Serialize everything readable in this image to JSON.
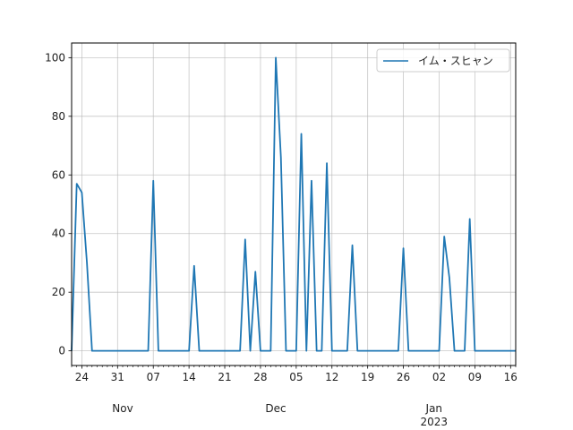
{
  "chart_data": {
    "type": "line",
    "title": "",
    "xlabel": "",
    "ylabel": "",
    "x_start": "2022-10-22",
    "x_end": "2023-01-17",
    "ylim": [
      -5,
      105
    ],
    "grid": true,
    "legend_position": "top-right",
    "series_color": "#1f77b4",
    "y_ticks": [
      0,
      20,
      40,
      60,
      80,
      100
    ],
    "x_ticks": [
      {
        "date": "2022-10-24",
        "label": "24"
      },
      {
        "date": "2022-10-31",
        "label": "31"
      },
      {
        "date": "2022-11-07",
        "label": "07"
      },
      {
        "date": "2022-11-14",
        "label": "14"
      },
      {
        "date": "2022-11-21",
        "label": "21"
      },
      {
        "date": "2022-11-28",
        "label": "28"
      },
      {
        "date": "2022-12-05",
        "label": "05"
      },
      {
        "date": "2022-12-12",
        "label": "12"
      },
      {
        "date": "2022-12-19",
        "label": "19"
      },
      {
        "date": "2022-12-26",
        "label": "26"
      },
      {
        "date": "2023-01-02",
        "label": "02"
      },
      {
        "date": "2023-01-09",
        "label": "09"
      },
      {
        "date": "2023-01-16",
        "label": "16"
      }
    ],
    "month_labels": [
      {
        "date": "2022-11-01",
        "label": "Nov"
      },
      {
        "date": "2022-12-01",
        "label": "Dec"
      },
      {
        "date": "2023-01-01",
        "label": "Jan"
      }
    ],
    "year_labels": [
      {
        "date": "2023-01-01",
        "label": "2023"
      }
    ],
    "series": [
      {
        "name": "イム・スヒャン",
        "points": [
          [
            "2022-10-22",
            0
          ],
          [
            "2022-10-23",
            57
          ],
          [
            "2022-10-24",
            54
          ],
          [
            "2022-10-25",
            30
          ],
          [
            "2022-10-26",
            0
          ],
          [
            "2022-11-06",
            0
          ],
          [
            "2022-11-07",
            58
          ],
          [
            "2022-11-08",
            0
          ],
          [
            "2022-11-14",
            0
          ],
          [
            "2022-11-15",
            29
          ],
          [
            "2022-11-16",
            0
          ],
          [
            "2022-11-24",
            0
          ],
          [
            "2022-11-25",
            38
          ],
          [
            "2022-11-26",
            0
          ],
          [
            "2022-11-27",
            27
          ],
          [
            "2022-11-28",
            0
          ],
          [
            "2022-11-30",
            0
          ],
          [
            "2022-12-01",
            100
          ],
          [
            "2022-12-02",
            66
          ],
          [
            "2022-12-03",
            0
          ],
          [
            "2022-12-05",
            0
          ],
          [
            "2022-12-06",
            74
          ],
          [
            "2022-12-07",
            0
          ],
          [
            "2022-12-08",
            58
          ],
          [
            "2022-12-09",
            0
          ],
          [
            "2022-12-10",
            0
          ],
          [
            "2022-12-11",
            64
          ],
          [
            "2022-12-12",
            0
          ],
          [
            "2022-12-15",
            0
          ],
          [
            "2022-12-16",
            36
          ],
          [
            "2022-12-17",
            0
          ],
          [
            "2022-12-25",
            0
          ],
          [
            "2022-12-26",
            35
          ],
          [
            "2022-12-27",
            0
          ],
          [
            "2023-01-02",
            0
          ],
          [
            "2023-01-03",
            39
          ],
          [
            "2023-01-04",
            25
          ],
          [
            "2023-01-05",
            0
          ],
          [
            "2023-01-07",
            0
          ],
          [
            "2023-01-08",
            45
          ],
          [
            "2023-01-09",
            0
          ],
          [
            "2023-01-17",
            0
          ]
        ]
      }
    ]
  }
}
